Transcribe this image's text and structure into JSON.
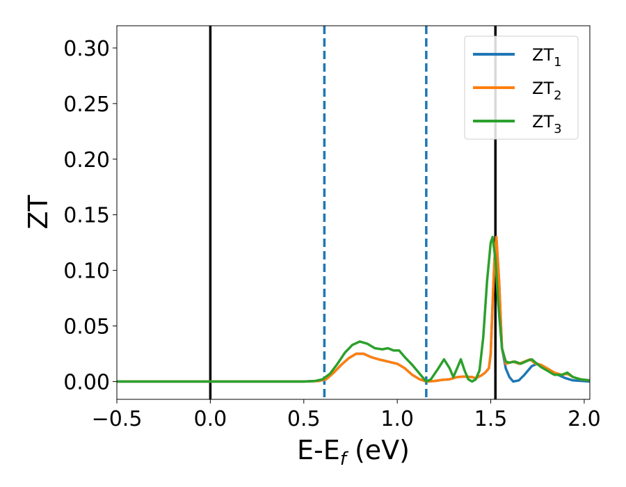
{
  "chart_data": {
    "type": "line",
    "xlabel": {
      "main": "E-E",
      "sub": "f",
      "unit": " (eV)"
    },
    "ylabel": "ZT",
    "xlim": [
      -0.5,
      2.03
    ],
    "ylim": [
      -0.016,
      0.32
    ],
    "x_ticks": [
      -0.5,
      0.0,
      0.5,
      1.0,
      1.5,
      2.0
    ],
    "x_tick_labels": [
      "−0.5",
      "0.0",
      "0.5",
      "1.0",
      "1.5",
      "2.0"
    ],
    "y_ticks": [
      0.0,
      0.05,
      0.1,
      0.15,
      0.2,
      0.25,
      0.3
    ],
    "y_tick_labels": [
      "0.00",
      "0.05",
      "0.10",
      "0.15",
      "0.20",
      "0.25",
      "0.30"
    ],
    "legend_position": "top-right",
    "vertical_lines": [
      {
        "x": 0.0,
        "style": "solid",
        "color": "#000000"
      },
      {
        "x": 0.61,
        "style": "dashed",
        "color": "#1f77b4"
      },
      {
        "x": 1.155,
        "style": "dashed",
        "color": "#1f77b4"
      },
      {
        "x": 1.525,
        "style": "solid",
        "color": "#000000"
      }
    ],
    "series": [
      {
        "name": "ZT",
        "sub": "1",
        "color": "#1f77b4",
        "points": [
          [
            -0.5,
            0
          ],
          [
            0.5,
            0
          ],
          [
            0.58,
            0.0005
          ],
          [
            0.62,
            0.002
          ],
          [
            0.66,
            0.008
          ],
          [
            0.7,
            0.015
          ],
          [
            0.74,
            0.021
          ],
          [
            0.78,
            0.025
          ],
          [
            0.82,
            0.025
          ],
          [
            0.86,
            0.022
          ],
          [
            0.9,
            0.02
          ],
          [
            0.95,
            0.018
          ],
          [
            1.0,
            0.016
          ],
          [
            1.04,
            0.012
          ],
          [
            1.08,
            0.006
          ],
          [
            1.12,
            0.002
          ],
          [
            1.155,
            0.0
          ],
          [
            1.2,
            0.0005
          ],
          [
            1.24,
            0.0015
          ],
          [
            1.28,
            0.002
          ],
          [
            1.32,
            0.004
          ],
          [
            1.36,
            0.0045
          ],
          [
            1.4,
            0.004
          ],
          [
            1.42,
            0.003
          ],
          [
            1.45,
            0.0055
          ],
          [
            1.47,
            0.008
          ],
          [
            1.49,
            0.012
          ],
          [
            1.5,
            0.025
          ],
          [
            1.51,
            0.07
          ],
          [
            1.52,
            0.11
          ],
          [
            1.53,
            0.13
          ],
          [
            1.545,
            0.09
          ],
          [
            1.56,
            0.03
          ],
          [
            1.58,
            0.012
          ],
          [
            1.6,
            0.004
          ],
          [
            1.62,
            0.0
          ],
          [
            1.65,
            0.001
          ],
          [
            1.68,
            0.006
          ],
          [
            1.72,
            0.014
          ],
          [
            1.75,
            0.016
          ],
          [
            1.78,
            0.014
          ],
          [
            1.82,
            0.01
          ],
          [
            1.86,
            0.006
          ],
          [
            1.9,
            0.003
          ],
          [
            1.94,
            0.001
          ],
          [
            2.03,
            0.0
          ]
        ]
      },
      {
        "name": "ZT",
        "sub": "2",
        "color": "#ff7f0e",
        "points": [
          [
            -0.5,
            0
          ],
          [
            0.5,
            0
          ],
          [
            0.58,
            0.0005
          ],
          [
            0.62,
            0.002
          ],
          [
            0.66,
            0.008
          ],
          [
            0.7,
            0.015
          ],
          [
            0.74,
            0.021
          ],
          [
            0.78,
            0.025
          ],
          [
            0.82,
            0.025
          ],
          [
            0.86,
            0.022
          ],
          [
            0.9,
            0.02
          ],
          [
            0.95,
            0.018
          ],
          [
            1.0,
            0.016
          ],
          [
            1.04,
            0.012
          ],
          [
            1.08,
            0.006
          ],
          [
            1.12,
            0.002
          ],
          [
            1.155,
            0.0
          ],
          [
            1.2,
            0.0005
          ],
          [
            1.24,
            0.0015
          ],
          [
            1.28,
            0.002
          ],
          [
            1.32,
            0.004
          ],
          [
            1.36,
            0.0045
          ],
          [
            1.4,
            0.004
          ],
          [
            1.42,
            0.003
          ],
          [
            1.45,
            0.0055
          ],
          [
            1.47,
            0.008
          ],
          [
            1.49,
            0.012
          ],
          [
            1.5,
            0.025
          ],
          [
            1.51,
            0.07
          ],
          [
            1.52,
            0.11
          ],
          [
            1.53,
            0.13
          ],
          [
            1.545,
            0.09
          ],
          [
            1.56,
            0.03
          ],
          [
            1.58,
            0.016
          ],
          [
            1.6,
            0.017
          ],
          [
            1.62,
            0.018
          ],
          [
            1.65,
            0.016
          ],
          [
            1.68,
            0.018
          ],
          [
            1.71,
            0.02
          ],
          [
            1.74,
            0.016
          ],
          [
            1.77,
            0.015
          ],
          [
            1.8,
            0.012
          ],
          [
            1.84,
            0.008
          ],
          [
            1.88,
            0.006
          ],
          [
            1.91,
            0.007
          ],
          [
            1.94,
            0.004
          ],
          [
            1.98,
            0.002
          ],
          [
            2.03,
            0.001
          ]
        ]
      },
      {
        "name": "ZT",
        "sub": "3",
        "color": "#2ca02c",
        "points": [
          [
            -0.5,
            0
          ],
          [
            0.5,
            0
          ],
          [
            0.56,
            0.0005
          ],
          [
            0.6,
            0.002
          ],
          [
            0.64,
            0.007
          ],
          [
            0.68,
            0.016
          ],
          [
            0.72,
            0.026
          ],
          [
            0.76,
            0.033
          ],
          [
            0.8,
            0.036
          ],
          [
            0.84,
            0.034
          ],
          [
            0.88,
            0.03
          ],
          [
            0.92,
            0.029
          ],
          [
            0.95,
            0.03
          ],
          [
            0.98,
            0.028
          ],
          [
            1.01,
            0.028
          ],
          [
            1.04,
            0.022
          ],
          [
            1.08,
            0.015
          ],
          [
            1.12,
            0.007
          ],
          [
            1.155,
            0.0
          ],
          [
            1.18,
            0.002
          ],
          [
            1.22,
            0.012
          ],
          [
            1.25,
            0.02
          ],
          [
            1.28,
            0.012
          ],
          [
            1.3,
            0.004
          ],
          [
            1.32,
            0.012
          ],
          [
            1.34,
            0.02
          ],
          [
            1.36,
            0.01
          ],
          [
            1.38,
            0.002
          ],
          [
            1.4,
            0.0
          ],
          [
            1.42,
            0.002
          ],
          [
            1.44,
            0.01
          ],
          [
            1.46,
            0.04
          ],
          [
            1.48,
            0.09
          ],
          [
            1.5,
            0.125
          ],
          [
            1.51,
            0.13
          ],
          [
            1.525,
            0.11
          ],
          [
            1.54,
            0.07
          ],
          [
            1.56,
            0.03
          ],
          [
            1.58,
            0.018
          ],
          [
            1.6,
            0.017
          ],
          [
            1.63,
            0.018
          ],
          [
            1.66,
            0.016
          ],
          [
            1.7,
            0.019
          ],
          [
            1.72,
            0.02
          ],
          [
            1.74,
            0.017
          ],
          [
            1.77,
            0.013
          ],
          [
            1.8,
            0.01
          ],
          [
            1.84,
            0.006
          ],
          [
            1.88,
            0.006
          ],
          [
            1.91,
            0.008
          ],
          [
            1.94,
            0.004
          ],
          [
            1.98,
            0.002
          ],
          [
            2.03,
            0.001
          ]
        ]
      }
    ]
  }
}
